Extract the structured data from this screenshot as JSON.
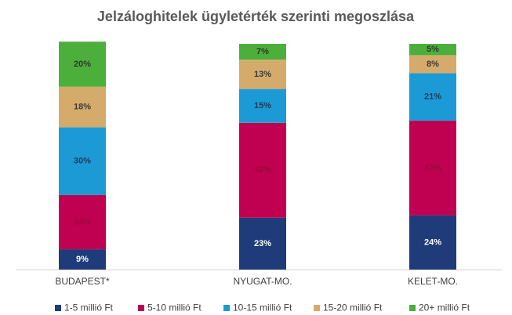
{
  "chart_data": {
    "type": "stacked_bar",
    "title": "Jelzáloghitelek ügyletérték szerinti megoszlása",
    "categories": [
      "BUDAPEST*",
      "NYUGAT-MO.",
      "KELET-MO."
    ],
    "ylim": [
      0,
      100
    ],
    "series": [
      {
        "name": "1-5 millió Ft",
        "color": "#1f3b7a",
        "label_color": "#ffffff",
        "values": [
          9,
          23,
          24
        ],
        "value_labels": [
          "9%",
          "23%",
          "24%"
        ]
      },
      {
        "name": "5-10 millió Ft",
        "color": "#c00050",
        "label_color": "#9a0a3e",
        "values": [
          24,
          42,
          42
        ],
        "value_labels": [
          "24%",
          "42%",
          "42%"
        ]
      },
      {
        "name": "10-15 millió Ft",
        "color": "#1b9ad6",
        "label_color": "#1f3b5a",
        "values": [
          30,
          15,
          21
        ],
        "value_labels": [
          "30%",
          "15%",
          "21%"
        ]
      },
      {
        "name": "15-20 millió Ft",
        "color": "#d5ab6b",
        "label_color": "#3a3a3a",
        "values": [
          18,
          13,
          8
        ],
        "value_labels": [
          "18%",
          "13%",
          "8%"
        ]
      },
      {
        "name": "20+ millió Ft",
        "color": "#4caf3c",
        "label_color": "#2a3a2a",
        "values": [
          20,
          7,
          5
        ],
        "value_labels": [
          "20%",
          "7%",
          "5%"
        ]
      }
    ],
    "legend": "bottom"
  }
}
